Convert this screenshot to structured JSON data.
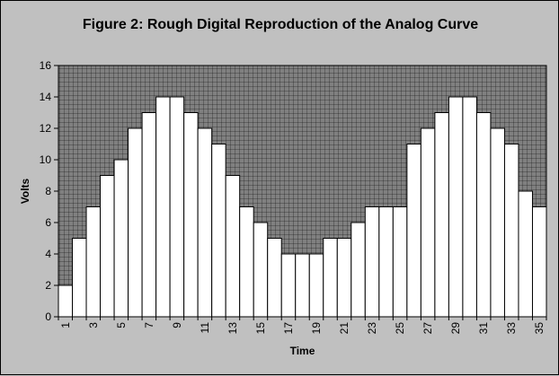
{
  "chart_data": {
    "type": "bar",
    "title": "Figure 2: Rough Digital Reproduction of the Analog Curve",
    "xlabel": "Time",
    "ylabel": "Volts",
    "ylim": [
      0,
      16
    ],
    "y_ticks": [
      0,
      2,
      4,
      6,
      8,
      10,
      12,
      14,
      16
    ],
    "categories": [
      "1",
      "2",
      "3",
      "4",
      "5",
      "6",
      "7",
      "8",
      "9",
      "10",
      "11",
      "12",
      "13",
      "14",
      "15",
      "16",
      "17",
      "18",
      "19",
      "20",
      "21",
      "22",
      "23",
      "24",
      "25",
      "26",
      "27",
      "28",
      "29",
      "30",
      "31",
      "32",
      "33",
      "34",
      "35"
    ],
    "x_tick_labels": [
      "1",
      "3",
      "5",
      "7",
      "9",
      "11",
      "13",
      "15",
      "17",
      "19",
      "21",
      "23",
      "25",
      "27",
      "29",
      "31",
      "33",
      "35"
    ],
    "values": [
      2,
      5,
      7,
      9,
      10,
      12,
      13,
      14,
      14,
      13,
      12,
      11,
      9,
      7,
      6,
      5,
      4,
      4,
      4,
      5,
      5,
      6,
      7,
      7,
      7,
      11,
      12,
      13,
      14,
      14,
      13,
      12,
      11,
      8,
      7
    ],
    "grid": true,
    "legend": "none",
    "colors": {
      "background": "#c0c0c0",
      "plot_area": "#808080",
      "grid": "#000000",
      "bar_fill": "#ffffff",
      "bar_stroke": "#000000"
    }
  }
}
